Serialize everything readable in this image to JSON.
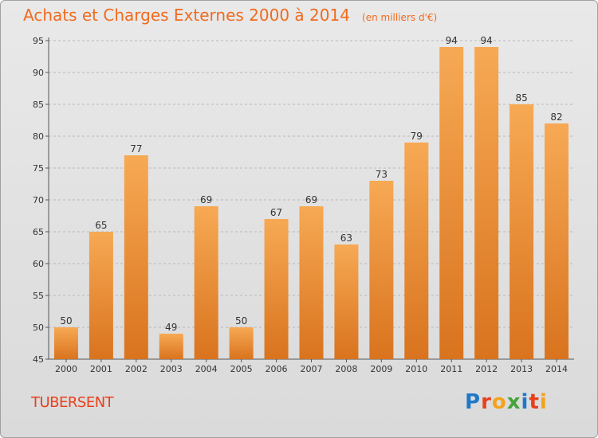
{
  "header": {
    "title": "Achats et Charges Externes 2000 à 2014",
    "unit": "(en milliers d'€)"
  },
  "footer": {
    "town": "TUBERSENT",
    "logo": "Proxiti"
  },
  "logo_letters": [
    {
      "ch": "P",
      "color": "#1f78c8"
    },
    {
      "ch": "r",
      "color": "#e8401c"
    },
    {
      "ch": "o",
      "color": "#f3a31a"
    },
    {
      "ch": "x",
      "color": "#43a33b"
    },
    {
      "ch": "i",
      "color": "#1f78c8"
    },
    {
      "ch": "t",
      "color": "#e8401c"
    },
    {
      "ch": "i",
      "color": "#f3a31a"
    }
  ],
  "colors": {
    "accent": "#f06b1e",
    "bar_light": "#f7a954",
    "bar_dark": "#d9731e",
    "town": "#e8401c"
  },
  "chart_data": {
    "type": "bar",
    "title": "Achats et Charges Externes 2000 à 2014",
    "subtitle": "(en milliers d'€)",
    "categories": [
      "2000",
      "2001",
      "2002",
      "2003",
      "2004",
      "2005",
      "2006",
      "2007",
      "2008",
      "2009",
      "2010",
      "2011",
      "2012",
      "2013",
      "2014"
    ],
    "values": [
      50,
      65,
      77,
      49,
      69,
      50,
      67,
      69,
      63,
      73,
      79,
      94,
      94,
      85,
      82
    ],
    "ylim": [
      45,
      95
    ],
    "yticks": [
      45,
      50,
      55,
      60,
      65,
      70,
      75,
      80,
      85,
      90,
      95
    ],
    "grid": "horizontal dashed",
    "data_labels": true
  }
}
